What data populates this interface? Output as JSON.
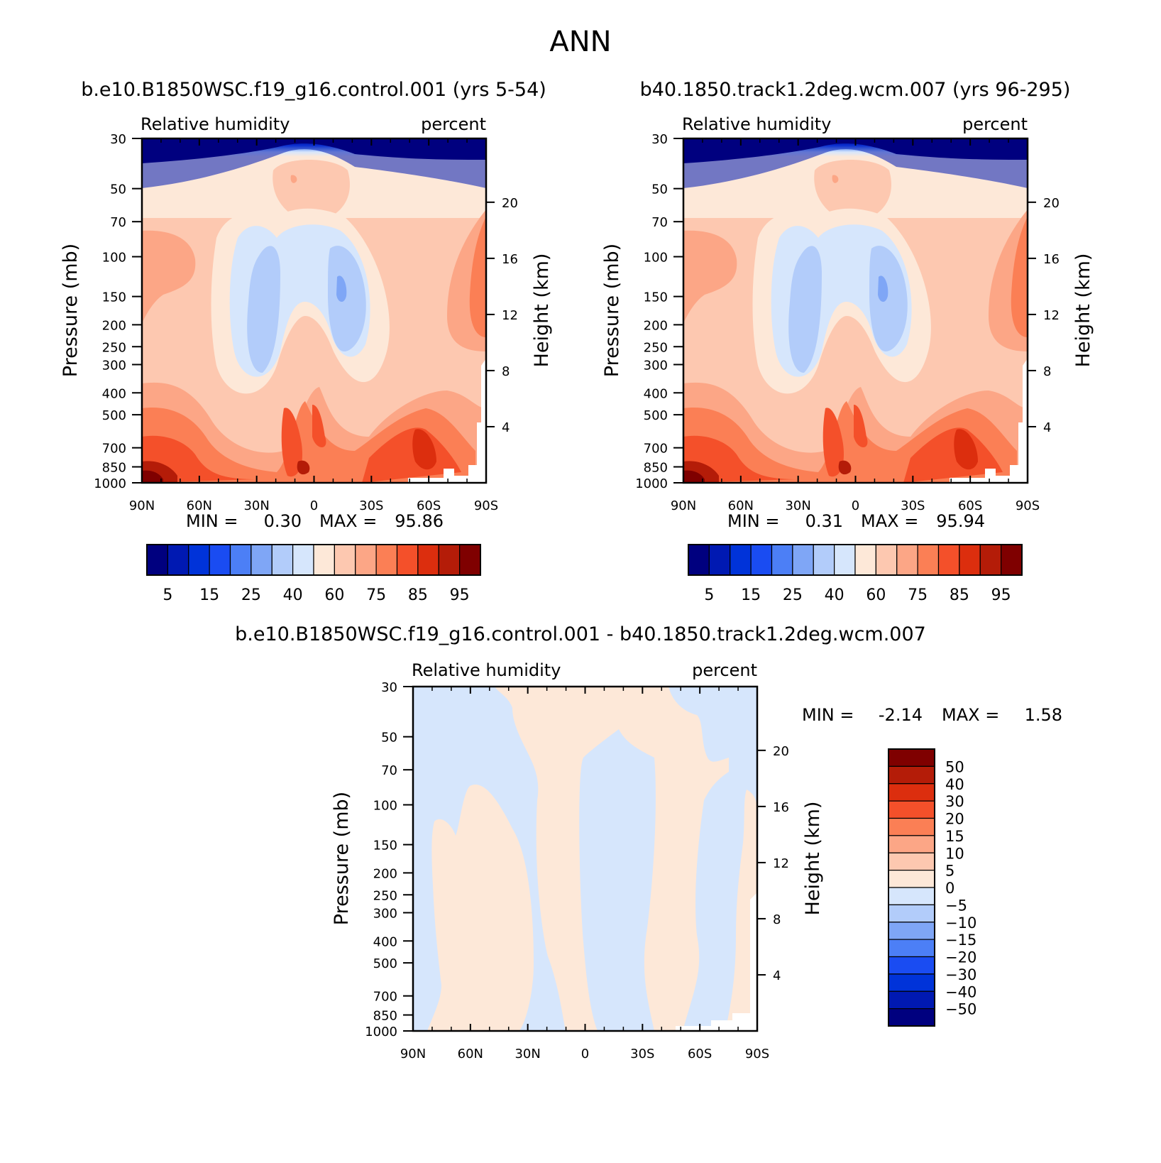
{
  "title": "ANN",
  "colors": {
    "abs_levels": [
      "#00007f",
      "#0019b2",
      "#0033d9",
      "#1a4cf2",
      "#4c7ff6",
      "#7fa6f6",
      "#b2ccfa",
      "#d6e6fc",
      "#fde8d8",
      "#fdc8b0",
      "#fca686",
      "#fb7f55",
      "#f4502a",
      "#dc2e0e",
      "#b41c08",
      "#7f0000"
    ],
    "diff_levels": [
      "#00007f",
      "#0019b2",
      "#0033d9",
      "#1a4cf2",
      "#4c7ff6",
      "#7fa6f6",
      "#b2ccfa",
      "#d6e6fc",
      "#fde8d8",
      "#fdc8b0",
      "#fca686",
      "#fb7f55",
      "#f4502a",
      "#dc2e0e",
      "#b41c08",
      "#7f0000"
    ]
  },
  "chart_data": [
    {
      "type": "heatmap",
      "title": "b.e10.B1850WSC.f19_g16.control.001 (yrs 5-54)",
      "left_string": "Relative humidity",
      "right_string": "percent",
      "ylabel": "Pressure (mb)",
      "y2label": "Height (km)",
      "xticks": [
        "90N",
        "60N",
        "30N",
        "0",
        "30S",
        "60S",
        "90S"
      ],
      "yticks": [
        "30",
        "50",
        "70",
        "100",
        "150",
        "200",
        "250",
        "300",
        "400",
        "500",
        "700",
        "850",
        "1000"
      ],
      "y2ticks": [
        "20",
        "16",
        "12",
        "8",
        "4"
      ],
      "min_label": "MIN =",
      "min_value": "0.30",
      "max_label": "MAX =",
      "max_value": "95.86",
      "colorbar_labels": [
        "5",
        "15",
        "25",
        "40",
        "60",
        "75",
        "85",
        "95"
      ]
    },
    {
      "type": "heatmap",
      "title": "b40.1850.track1.2deg.wcm.007 (yrs 96-295)",
      "left_string": "Relative humidity",
      "right_string": "percent",
      "ylabel": "Pressure (mb)",
      "y2label": "Height (km)",
      "xticks": [
        "90N",
        "60N",
        "30N",
        "0",
        "30S",
        "60S",
        "90S"
      ],
      "yticks": [
        "30",
        "50",
        "70",
        "100",
        "150",
        "200",
        "250",
        "300",
        "400",
        "500",
        "700",
        "850",
        "1000"
      ],
      "y2ticks": [
        "20",
        "16",
        "12",
        "8",
        "4"
      ],
      "min_label": "MIN =",
      "min_value": "0.31",
      "max_label": "MAX =",
      "max_value": "95.94",
      "colorbar_labels": [
        "5",
        "15",
        "25",
        "40",
        "60",
        "75",
        "85",
        "95"
      ]
    },
    {
      "type": "heatmap",
      "title": "b.e10.B1850WSC.f19_g16.control.001 - b40.1850.track1.2deg.wcm.007",
      "left_string": "Relative humidity",
      "right_string": "percent",
      "ylabel": "Pressure (mb)",
      "y2label": "Height (km)",
      "xticks": [
        "90N",
        "60N",
        "30N",
        "0",
        "30S",
        "60S",
        "90S"
      ],
      "yticks": [
        "30",
        "50",
        "70",
        "100",
        "150",
        "200",
        "250",
        "300",
        "400",
        "500",
        "700",
        "850",
        "1000"
      ],
      "y2ticks": [
        "20",
        "16",
        "12",
        "8",
        "4"
      ],
      "min_label": "MIN =",
      "min_value": "-2.14",
      "max_label": "MAX =",
      "max_value": "1.58",
      "colorbar_labels": [
        "50",
        "40",
        "30",
        "20",
        "15",
        "10",
        "5",
        "0",
        "-5",
        "-10",
        "-15",
        "-20",
        "-30",
        "-40",
        "-50"
      ]
    }
  ]
}
